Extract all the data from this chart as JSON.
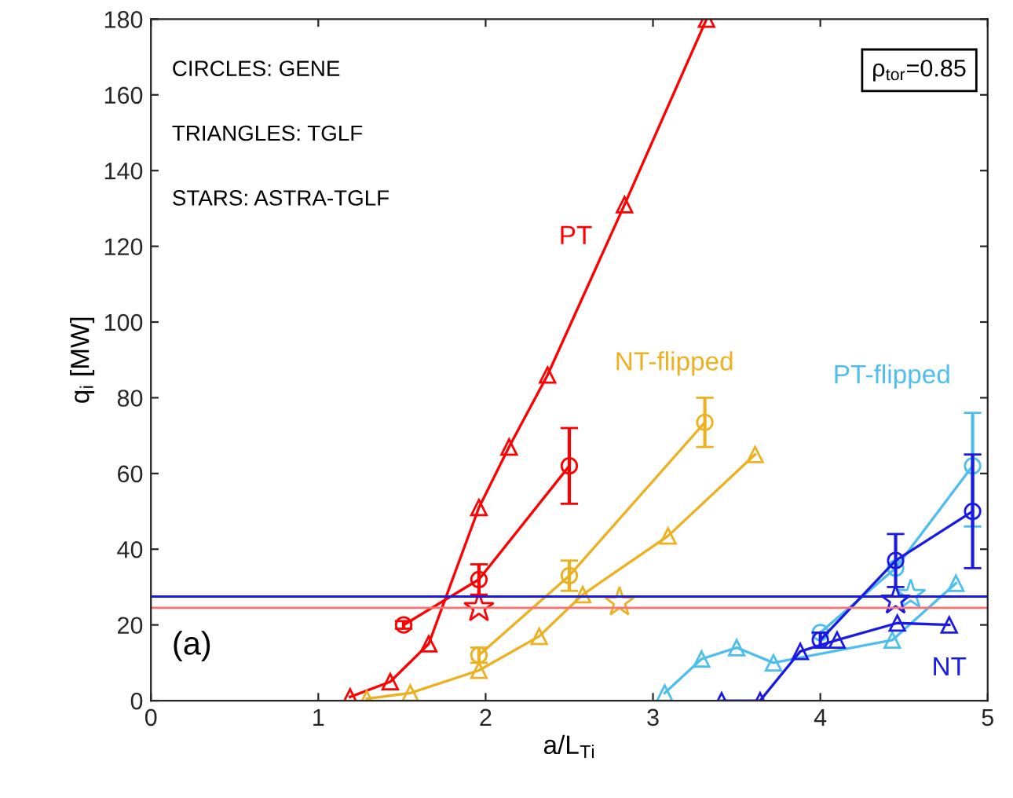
{
  "chart_data": {
    "type": "line",
    "xlabel": "a/L$_{Ti}$",
    "ylabel": "q$_{i}$ [MW]",
    "xlim": [
      0,
      5
    ],
    "ylim": [
      0,
      180
    ],
    "xticks": [
      0,
      1,
      2,
      3,
      4,
      5
    ],
    "yticks": [
      0,
      20,
      40,
      60,
      80,
      100,
      120,
      140,
      160,
      180
    ],
    "grid": false,
    "series": [
      {
        "name": "PT",
        "color": "#ff0000",
        "marker": "triangle",
        "x": [
          1.19,
          1.43,
          1.66,
          1.96,
          2.14,
          2.37,
          2.83,
          3.32
        ],
        "values": [
          1,
          5,
          15,
          51,
          67,
          86,
          131,
          180
        ]
      },
      {
        "color": "#ff0000",
        "marker": "circle",
        "x": [
          1.51,
          1.96,
          2.5
        ],
        "values": [
          20,
          32,
          62
        ],
        "errors": [
          1,
          4,
          10
        ]
      },
      {
        "color": "#ff0000",
        "type": "scatter",
        "marker": "star",
        "x": [
          1.96
        ],
        "values": [
          24.5
        ]
      },
      {
        "color": "#edb120",
        "marker": "triangle",
        "x": [
          1.29,
          1.55,
          1.96,
          2.32,
          2.58,
          3.09,
          3.61
        ],
        "values": [
          0.5,
          2,
          8,
          17,
          28,
          43.5,
          65
        ]
      },
      {
        "name": "NT-flipped",
        "color": "#edb120",
        "marker": "circle",
        "x": [
          1.96,
          2.5,
          3.31
        ],
        "values": [
          12,
          33,
          73.5
        ],
        "errors": [
          2,
          4,
          6.5
        ]
      },
      {
        "color": "#edb120",
        "type": "scatter",
        "marker": "star",
        "x": [
          2.8
        ],
        "values": [
          26
        ]
      },
      {
        "color": "#4dbeee",
        "marker": "triangle",
        "x": [
          3.07,
          3.29,
          3.5,
          3.72,
          4.43,
          4.81
        ],
        "values": [
          2,
          11,
          14,
          10,
          16,
          31
        ]
      },
      {
        "name": "PT-flipped",
        "color": "#4dbeee",
        "marker": "circle",
        "x": [
          4.0,
          4.45,
          4.91
        ],
        "values": [
          18,
          35,
          62
        ],
        "errors": [
          null,
          null,
          [
            46,
            76
          ]
        ]
      },
      {
        "color": "#4dbeee",
        "type": "scatter",
        "marker": "star",
        "x": [
          4.54
        ],
        "values": [
          28
        ]
      },
      {
        "name": "NT",
        "color": "#1a1ae6",
        "marker": "triangle",
        "x": [
          3.41,
          3.64,
          3.88,
          4.1,
          4.46,
          4.77
        ],
        "values": [
          0,
          0,
          13,
          16,
          20.5,
          20
        ]
      },
      {
        "color": "#1a1ae6",
        "marker": "circle",
        "x": [
          4.0,
          4.45,
          4.91
        ],
        "values": [
          16,
          37,
          50
        ],
        "errors": [
          2,
          [
            30,
            44
          ],
          [
            35,
            65
          ]
        ]
      },
      {
        "color": "#1a1ae6",
        "type": "scatter",
        "marker": "star",
        "x": [
          4.45
        ],
        "values": [
          26.5
        ]
      }
    ],
    "ref_lines": [
      {
        "axis": "y",
        "value": 27.5,
        "color": "#1a1ae6",
        "label": null
      },
      {
        "axis": "y",
        "value": 24.5,
        "color": "#ff7070",
        "label": null
      }
    ],
    "annotations": [
      "CIRCLES: GENE",
      "TRIANGLES: TGLF",
      "STARS: ASTRA-TGLF",
      "(a)",
      "ρ$_{tor}$=0.85"
    ]
  }
}
